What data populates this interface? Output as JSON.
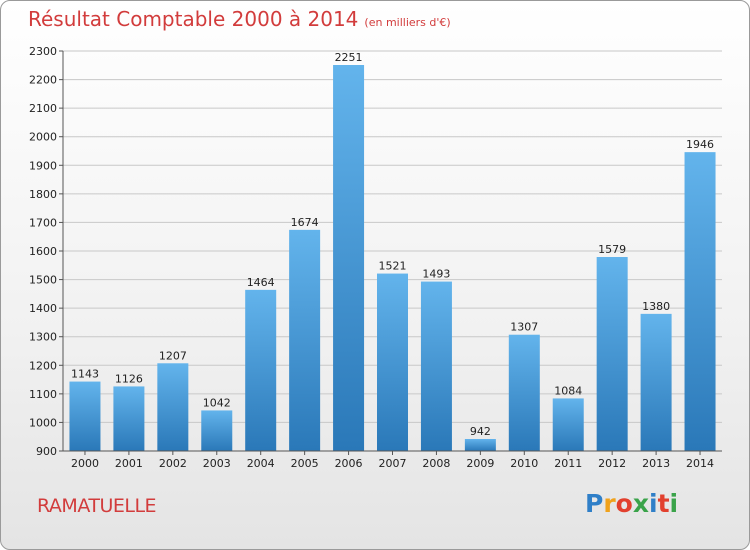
{
  "header": {
    "title": "Résultat Comptable 2000 à 2014",
    "subtitle": "(en milliers d'€)"
  },
  "footer": {
    "city": "RAMATUELLE",
    "logo_letters": [
      "P",
      "r",
      "o",
      "x",
      "i",
      "t",
      "i"
    ],
    "logo_colors": [
      "#2f7fc8",
      "#f0a21c",
      "#e2402e",
      "#3aa34a",
      "#2f7fc8",
      "#e2402e",
      "#3aa34a"
    ]
  },
  "colors": {
    "bar_light": "#63b4ec",
    "bar_dark": "#2a78b8",
    "grid": "#c8c8c8",
    "title": "#d23c3c"
  },
  "chart_data": {
    "type": "bar",
    "title": "Résultat Comptable 2000 à 2014",
    "subtitle": "(en milliers d'€)",
    "xlabel": "",
    "ylabel": "",
    "categories": [
      "2000",
      "2001",
      "2002",
      "2003",
      "2004",
      "2005",
      "2006",
      "2007",
      "2008",
      "2009",
      "2010",
      "2011",
      "2012",
      "2013",
      "2014"
    ],
    "values": [
      1143,
      1126,
      1207,
      1042,
      1464,
      1674,
      2251,
      1521,
      1493,
      942,
      1307,
      1084,
      1579,
      1380,
      1946
    ],
    "ylim": [
      900,
      2300
    ],
    "yticks": [
      900,
      1000,
      1100,
      1200,
      1300,
      1400,
      1500,
      1600,
      1700,
      1800,
      1900,
      2000,
      2100,
      2200,
      2300
    ],
    "grid": true,
    "legend": "none"
  }
}
